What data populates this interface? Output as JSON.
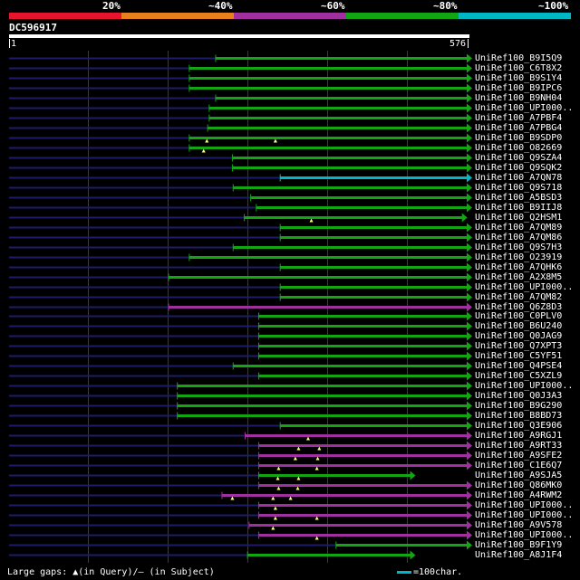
{
  "legend": {
    "percent_labels": [
      "20%",
      "~40%",
      "~60%",
      "~80%",
      "~100%"
    ],
    "colors": [
      "#e8142e",
      "#e8801e",
      "#a030a0",
      "#13a613",
      "#00b7c6"
    ]
  },
  "query": {
    "name": "DC596917",
    "start": "1",
    "end": "576",
    "length": 576
  },
  "palette": {
    "grid": "#3a3a3a",
    "dotted": "#1c1c6a",
    "marker": "#ffff80"
  },
  "hits": [
    {
      "label": "UniRef100_B9I5Q9",
      "color": "green",
      "start": 260,
      "end": 576,
      "arrow": true
    },
    {
      "label": "UniRef100_C6T8X2",
      "color": "green",
      "start": 227,
      "end": 576,
      "arrow": true
    },
    {
      "label": "UniRef100_B9S1Y4",
      "color": "green",
      "start": 227,
      "end": 576,
      "arrow": true
    },
    {
      "label": "UniRef100_B9IPC6",
      "color": "green",
      "start": 227,
      "end": 576,
      "arrow": true
    },
    {
      "label": "UniRef100_B9NH04",
      "color": "green",
      "start": 260,
      "end": 576,
      "arrow": true
    },
    {
      "label": "UniRef100_UPI000..",
      "color": "green",
      "start": 252,
      "end": 576,
      "arrow": true
    },
    {
      "label": "UniRef100_A7PBF4",
      "color": "green",
      "start": 252,
      "end": 576,
      "arrow": true
    },
    {
      "label": "UniRef100_A7PBG4",
      "color": "green",
      "start": 250,
      "end": 576,
      "arrow": true
    },
    {
      "label": "UniRef100_B9SDP0",
      "color": "green",
      "start": 227,
      "end": 576,
      "arrow": true,
      "markers": [
        249,
        335
      ]
    },
    {
      "label": "UniRef100_O82669",
      "color": "green",
      "start": 227,
      "end": 576,
      "arrow": true,
      "markers": [
        245
      ]
    },
    {
      "label": "UniRef100_Q9SZA4",
      "color": "green",
      "start": 281,
      "end": 576,
      "arrow": true
    },
    {
      "label": "UniRef100_Q9SQK2",
      "color": "green",
      "start": 281,
      "end": 576,
      "arrow": true
    },
    {
      "label": "UniRef100_A7QN78",
      "color": "cyan",
      "start": 341,
      "end": 576,
      "arrow": true
    },
    {
      "label": "UniRef100_Q9S718",
      "color": "green",
      "start": 282,
      "end": 576,
      "arrow": true
    },
    {
      "label": "UniRef100_A5BSD3",
      "color": "green",
      "start": 304,
      "end": 576,
      "arrow": true
    },
    {
      "label": "UniRef100_B9IIJ8",
      "color": "green",
      "start": 311,
      "end": 576,
      "arrow": true
    },
    {
      "label": "UniRef100_Q2HSM1",
      "color": "green",
      "start": 296,
      "end": 570,
      "arrow": true,
      "markers": [
        380
      ]
    },
    {
      "label": "UniRef100_A7QM89",
      "color": "green",
      "start": 341,
      "end": 576,
      "arrow": true
    },
    {
      "label": "UniRef100_A7QM86",
      "color": "green",
      "start": 341,
      "end": 576,
      "arrow": true
    },
    {
      "label": "UniRef100_Q9S7H3",
      "color": "green",
      "start": 282,
      "end": 576,
      "arrow": true
    },
    {
      "label": "UniRef100_O23919",
      "color": "green",
      "start": 227,
      "end": 576,
      "arrow": true
    },
    {
      "label": "UniRef100_A7QHK6",
      "color": "green",
      "start": 341,
      "end": 576,
      "arrow": true
    },
    {
      "label": "UniRef100_A2X8M5",
      "color": "green",
      "start": 201,
      "end": 576,
      "arrow": true
    },
    {
      "label": "UniRef100_UPI000..",
      "color": "green",
      "start": 341,
      "end": 576,
      "arrow": true
    },
    {
      "label": "UniRef100_A7QM82",
      "color": "green",
      "start": 341,
      "end": 576,
      "arrow": true
    },
    {
      "label": "UniRef100_Q6Z8D3",
      "color": "purple",
      "start": 201,
      "end": 576,
      "arrow": true
    },
    {
      "label": "UniRef100_C0PLV0",
      "color": "green",
      "start": 314,
      "end": 576,
      "arrow": true
    },
    {
      "label": "UniRef100_B6U240",
      "color": "green",
      "start": 314,
      "end": 576,
      "arrow": true
    },
    {
      "label": "UniRef100_Q0JAG9",
      "color": "green",
      "start": 314,
      "end": 576,
      "arrow": true
    },
    {
      "label": "UniRef100_Q7XPT3",
      "color": "green",
      "start": 314,
      "end": 576,
      "arrow": true
    },
    {
      "label": "UniRef100_C5YF51",
      "color": "green",
      "start": 314,
      "end": 576,
      "arrow": true
    },
    {
      "label": "UniRef100_Q4PSE4",
      "color": "green",
      "start": 282,
      "end": 576,
      "arrow": true
    },
    {
      "label": "UniRef100_C5XZL9",
      "color": "green",
      "start": 314,
      "end": 576,
      "arrow": true
    },
    {
      "label": "UniRef100_UPI000..",
      "color": "green",
      "start": 212,
      "end": 576,
      "arrow": true
    },
    {
      "label": "UniRef100_Q0J3A3",
      "color": "green",
      "start": 212,
      "end": 576,
      "arrow": true
    },
    {
      "label": "UniRef100_B9G290",
      "color": "green",
      "start": 212,
      "end": 576,
      "arrow": true
    },
    {
      "label": "UniRef100_B8BD73",
      "color": "green",
      "start": 212,
      "end": 576,
      "arrow": true
    },
    {
      "label": "UniRef100_Q3E906",
      "color": "green",
      "start": 341,
      "end": 576,
      "arrow": true
    },
    {
      "label": "UniRef100_A9RGJ1",
      "color": "purple",
      "start": 297,
      "end": 576,
      "arrow": true,
      "markers": [
        376
      ]
    },
    {
      "label": "UniRef100_A9RT33",
      "color": "purple",
      "start": 314,
      "end": 576,
      "arrow": true,
      "markers": [
        364,
        390
      ]
    },
    {
      "label": "UniRef100_A9SFE2",
      "color": "purple",
      "start": 314,
      "end": 576,
      "arrow": true,
      "markers": [
        360,
        388
      ]
    },
    {
      "label": "UniRef100_C1E6Q7",
      "color": "purple",
      "start": 314,
      "end": 576,
      "arrow": true,
      "markers": [
        339,
        387
      ]
    },
    {
      "label": "UniRef100_A9SJA5",
      "color": "green",
      "start": 314,
      "end": 505,
      "arrow": true,
      "markers": [
        338,
        364
      ]
    },
    {
      "label": "UniRef100_Q86MK0",
      "color": "purple",
      "start": 314,
      "end": 576,
      "arrow": true,
      "markers": [
        339,
        363
      ]
    },
    {
      "label": "UniRef100_A4RWM2",
      "color": "purple",
      "start": 268,
      "end": 576,
      "arrow": true,
      "markers": [
        281,
        332,
        354
      ]
    },
    {
      "label": "UniRef100_UPI000..",
      "color": "purple",
      "start": 314,
      "end": 576,
      "arrow": true,
      "markers": [
        335
      ]
    },
    {
      "label": "UniRef100_UPI000..",
      "color": "purple",
      "start": 314,
      "end": 576,
      "arrow": true,
      "markers": [
        335,
        387
      ]
    },
    {
      "label": "UniRef100_A9V578",
      "color": "purple",
      "start": 302,
      "end": 576,
      "arrow": true,
      "markers": [
        332
      ]
    },
    {
      "label": "UniRef100_UPI000..",
      "color": "purple",
      "start": 314,
      "end": 576,
      "arrow": true,
      "markers": [
        387
      ]
    },
    {
      "label": "UniRef100_B9F1Y9",
      "color": "green",
      "start": 411,
      "end": 576,
      "arrow": true
    },
    {
      "label": "UniRef100_A8J1F4",
      "color": "green",
      "start": 300,
      "end": 505,
      "arrow": true
    }
  ],
  "footer": {
    "gap_note": "Large gaps: ▲(in Query)/– (in Subject)",
    "scale_note": "=100char."
  }
}
